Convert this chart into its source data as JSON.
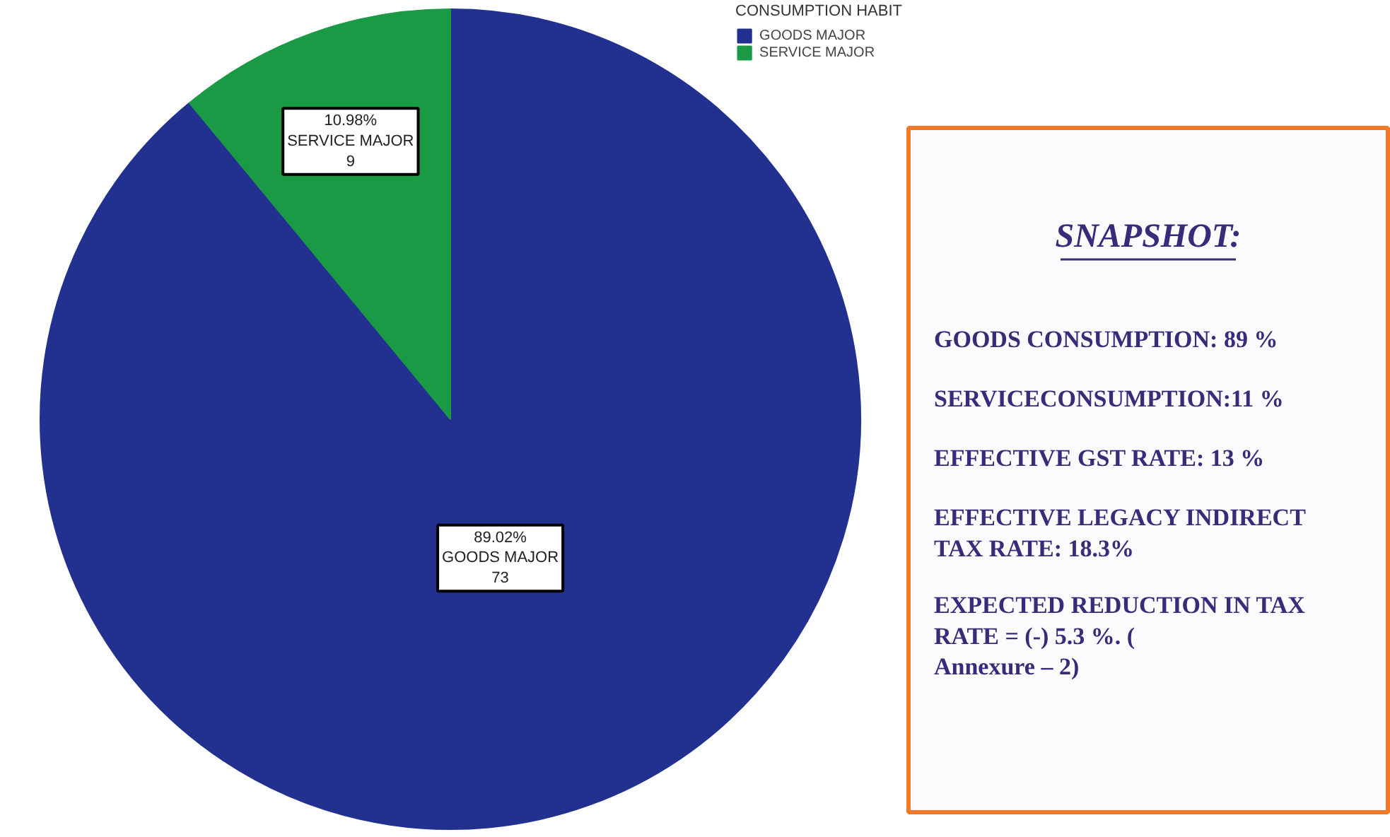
{
  "chart_data": [
    {
      "type": "pie",
      "legend_title": "CONSUMPTION HABIT",
      "legend": "top right",
      "categories": [
        "GOODS MAJOR",
        "SERVICE MAJOR"
      ],
      "values": [
        73,
        9
      ],
      "colors": [
        "#22318f",
        "#1a9a45"
      ],
      "value_labels": [
        "89.02%\nGOODS MAJOR\n73",
        "10.98%\nSERVICE MAJOR\n9"
      ]
    },
    {
      "type": "other",
      "title": "SNAPSHOT:",
      "annotations": [
        "GOODS CONSUMPTION: 89 %",
        "SERVICECONSUMPTION:11 %",
        "EFFECTIVE GST RATE: 13 %",
        "EFFECTIVE LEGACY INDIRECT TAX RATE: 18.3%",
        "EXPECTED REDUCTION IN TAX RATE = (-) 5.3 %. ( Annexure – 2)"
      ]
    }
  ]
}
